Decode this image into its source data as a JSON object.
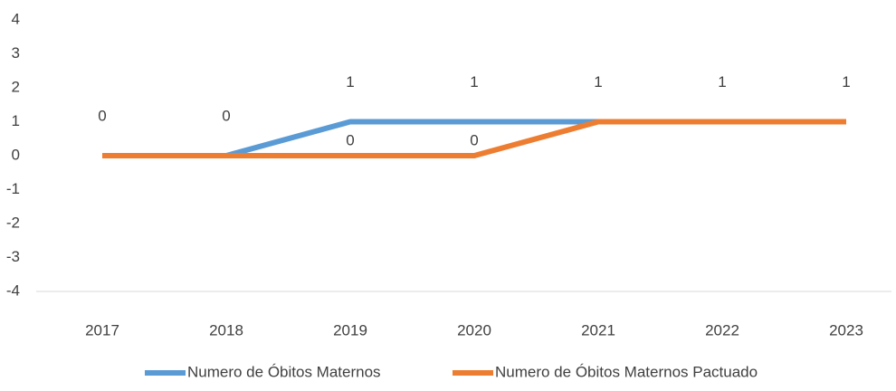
{
  "chart_data": {
    "type": "line",
    "categories": [
      "2017",
      "2018",
      "2019",
      "2020",
      "2021",
      "2022",
      "2023"
    ],
    "series": [
      {
        "name": "Numero de Óbitos Maternos",
        "color": "#5b9bd5",
        "values": [
          0,
          0,
          1,
          1,
          1,
          1,
          1
        ]
      },
      {
        "name": "Numero de Óbitos Maternos Pactuado",
        "color": "#ed7d31",
        "values": [
          0,
          0,
          0,
          0,
          1,
          1,
          1
        ]
      }
    ],
    "ylim": [
      -4,
      4
    ],
    "yticks": [
      -4,
      -3,
      -2,
      -1,
      0,
      1,
      2,
      3,
      4
    ],
    "grid": false,
    "legend": "bottom"
  }
}
